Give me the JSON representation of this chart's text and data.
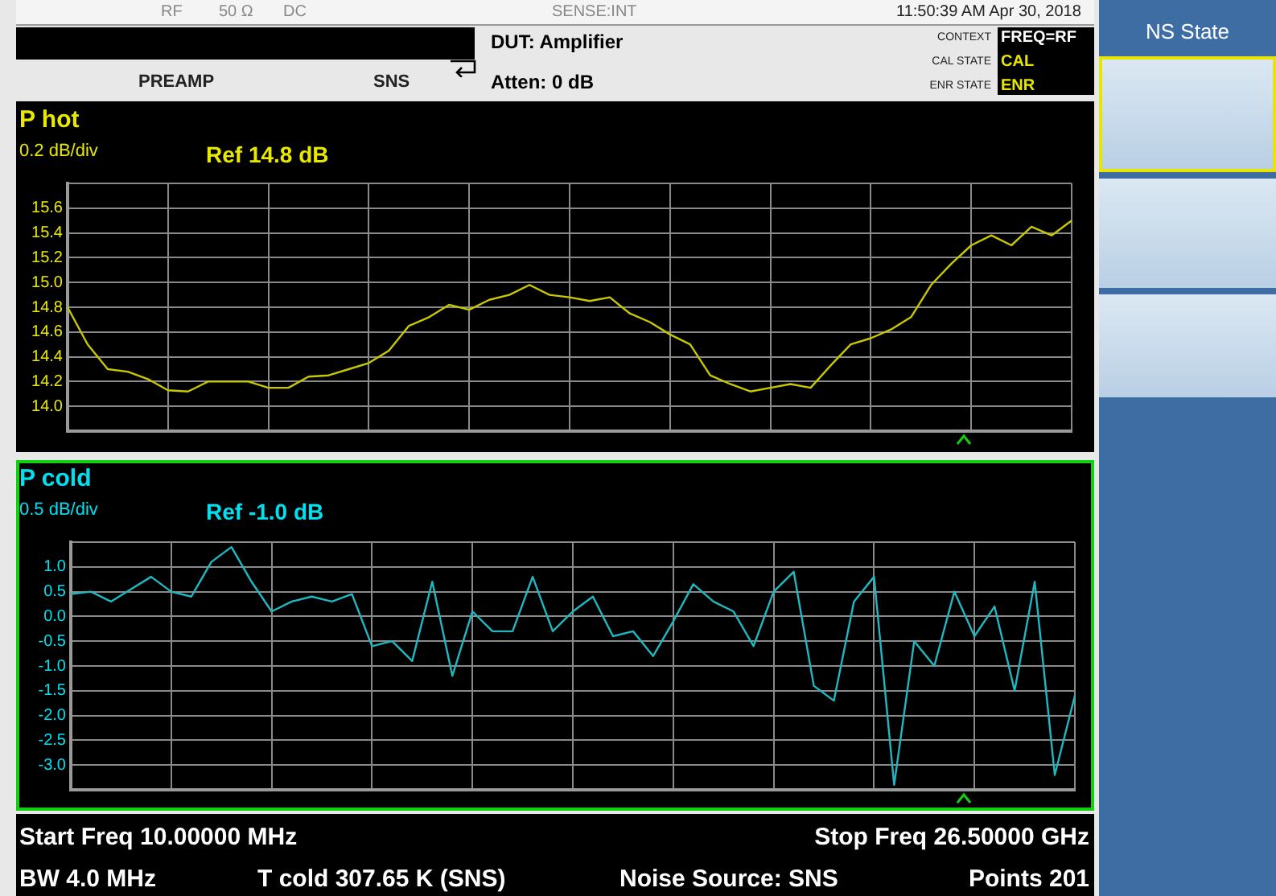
{
  "chart_data": [
    {
      "type": "line",
      "title": "P hot",
      "subtitle": "0.2 dB/div",
      "annotations": [
        "RF",
        "50 Ω",
        "DC",
        "SENSE:INT",
        "11:50:39 AM Apr 30, 2018",
        "DUT: Amplifier",
        "PREAMP",
        "SNS",
        "Atten: 0 dB",
        "CONTEXT",
        "FREQ=RF",
        "CAL STATE",
        "CAL",
        "ENR STATE",
        "ENR",
        "Ref 14.8 dB"
      ],
      "categories": [
        null,
        null,
        null,
        null,
        null,
        null,
        null,
        null,
        null,
        null,
        null,
        null,
        null,
        null,
        null,
        null,
        null,
        null,
        null,
        null,
        null,
        null,
        null,
        null,
        null,
        null,
        null,
        null,
        null,
        null,
        null,
        null,
        null,
        null,
        null,
        null,
        null,
        null,
        null,
        null,
        null,
        null,
        null,
        null,
        null,
        null,
        null,
        null,
        null,
        null,
        null
      ],
      "series": [
        {
          "color": "#c8c800",
          "values": [
            14.8,
            14.5,
            14.3,
            14.28,
            14.22,
            14.13,
            14.12,
            14.2,
            14.2,
            14.2,
            14.15,
            14.15,
            14.24,
            14.25,
            14.3,
            14.35,
            14.45,
            14.65,
            14.72,
            14.82,
            14.78,
            14.86,
            14.9,
            14.98,
            14.9,
            14.88,
            14.85,
            14.88,
            14.75,
            14.68,
            14.58,
            14.5,
            14.25,
            14.18,
            14.12,
            14.15,
            14.18,
            14.15,
            14.33,
            14.5,
            14.55,
            14.62,
            14.72,
            14.98,
            15.15,
            15.3,
            15.38,
            15.3,
            15.45,
            15.38,
            15.5
          ]
        }
      ],
      "ylim": [
        13.8,
        15.8
      ],
      "yticks": [
        {
          "value": 13.8,
          "label": null
        },
        {
          "value": 14,
          "label": "14.0"
        },
        14.2,
        14.4,
        14.6,
        14.8,
        {
          "value": 15,
          "label": "15.0"
        },
        15.2,
        15.4,
        15.6,
        {
          "value": 15.8,
          "label": null
        }
      ],
      "grid": true,
      "tick_labels": "y",
      "marker": "none",
      "line_style": "solid"
    },
    {
      "type": "line",
      "title": "P cold",
      "subtitle": "0.5 dB/div",
      "annotations": [
        "Ref -1.0 dB",
        "Start Freq 10.00000 MHz",
        "Stop Freq 26.50000 GHz",
        "BW 4.0 MHz",
        "T cold 307.65 K (SNS)",
        "Noise Source: SNS",
        "Points 201",
        "NS State"
      ],
      "categories": [
        null,
        null,
        null,
        null,
        null,
        null,
        null,
        null,
        null,
        null,
        null,
        null,
        null,
        null,
        null,
        null,
        null,
        null,
        null,
        null,
        null,
        null,
        null,
        null,
        null,
        null,
        null,
        null,
        null,
        null,
        null,
        null,
        null,
        null,
        null,
        null,
        null,
        null,
        null,
        null,
        null,
        null,
        null,
        null,
        null,
        null,
        null,
        null,
        null,
        null,
        null
      ],
      "series": [
        {
          "color": "#20b8c0",
          "values": [
            0.45,
            0.5,
            0.3,
            0.55,
            0.8,
            0.5,
            0.4,
            1.1,
            1.4,
            0.7,
            0.1,
            0.3,
            0.4,
            0.3,
            0.45,
            -0.6,
            -0.5,
            -0.9,
            0.7,
            -1.2,
            0.1,
            -0.3,
            -0.3,
            0.8,
            -0.3,
            0.1,
            0.4,
            -0.4,
            -0.3,
            -0.8,
            -0.1,
            0.65,
            0.3,
            0.1,
            -0.6,
            0.5,
            0.9,
            -1.4,
            -1.7,
            0.3,
            0.8,
            -3.4,
            -0.5,
            -1.0,
            0.5,
            -0.4,
            0.2,
            -1.5,
            0.7,
            -3.2,
            -1.6
          ]
        }
      ],
      "ylim": [
        -3.5,
        1.5
      ],
      "yticks": [
        {
          "value": -3.5,
          "label": null
        },
        {
          "value": -3,
          "label": "-3.0"
        },
        -2.5,
        {
          "value": -2,
          "label": "-2.0"
        },
        -1.5,
        {
          "value": -1,
          "label": "-1.0"
        },
        -0.5,
        {
          "value": 0,
          "label": "0.0"
        },
        0.5,
        {
          "value": 1,
          "label": "1.0"
        },
        {
          "value": 1.5,
          "label": null
        }
      ],
      "grid": true,
      "tick_labels": "y",
      "marker": "none",
      "line_style": "solid"
    }
  ]
}
